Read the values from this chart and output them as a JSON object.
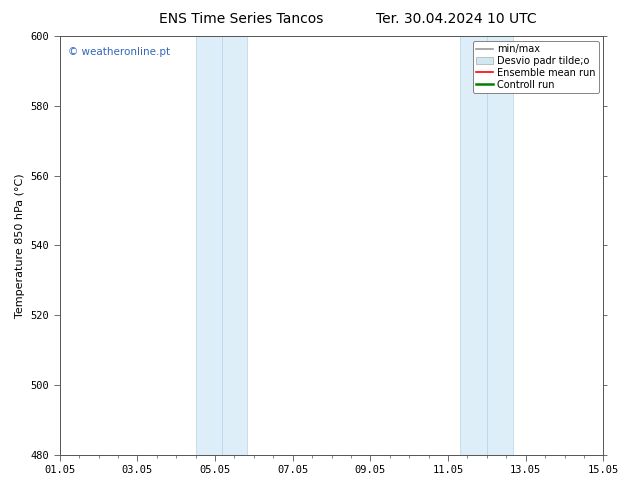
{
  "title": "ENS Time Series Tancos",
  "title2": "Ter. 30.04.2024 10 UTC",
  "ylabel": "Temperature 850 hPa (°C)",
  "ylim": [
    480,
    600
  ],
  "yticks": [
    480,
    500,
    520,
    540,
    560,
    580,
    600
  ],
  "xtick_labels": [
    "01.05",
    "03.05",
    "05.05",
    "07.05",
    "09.05",
    "11.05",
    "13.05",
    "15.05"
  ],
  "xtick_positions_days": [
    0,
    2,
    4,
    6,
    8,
    10,
    12,
    14
  ],
  "x_min": 0,
  "x_max": 14,
  "shaded_bands": [
    {
      "x_start_day": 3.5,
      "x_end_day": 4.17,
      "color": "#ddeef8"
    },
    {
      "x_start_day": 4.17,
      "x_end_day": 4.83,
      "color": "#ddeef8"
    },
    {
      "x_start_day": 10.3,
      "x_end_day": 11.0,
      "color": "#ddeef8"
    },
    {
      "x_start_day": 11.0,
      "x_end_day": 11.67,
      "color": "#ddeef8"
    }
  ],
  "legend_items": [
    {
      "label": "min/max",
      "color": "#999999",
      "lw": 1.2,
      "type": "line"
    },
    {
      "label": "Desvio padr tilde;o",
      "color": "#d0e8f0",
      "lw": 8,
      "type": "patch"
    },
    {
      "label": "Ensemble mean run",
      "color": "#ff0000",
      "lw": 1.2,
      "type": "line"
    },
    {
      "label": "Controll run",
      "color": "#008000",
      "lw": 1.8,
      "type": "line"
    }
  ],
  "watermark": "© weatheronline.pt",
  "watermark_color": "#3366bb",
  "bg_color": "#ffffff",
  "plot_bg_color": "#ffffff",
  "title_fontsize": 10,
  "axis_label_fontsize": 8,
  "tick_fontsize": 7.5,
  "legend_fontsize": 7
}
